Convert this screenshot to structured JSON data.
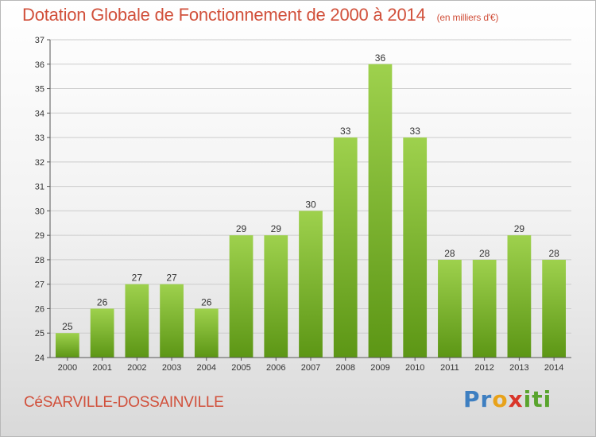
{
  "page": {
    "title": "Dotation Globale de Fonctionnement de 2000 à 2014",
    "subtitle": "(en milliers d'€)",
    "commune": "CéSARVILLE-DOSSAINVILLE",
    "logo": {
      "text": "Proxiti",
      "letters": [
        "P",
        "r",
        "o",
        "x",
        "i",
        "t",
        "i"
      ],
      "colors": [
        "#3e7fc1",
        "#3e7fc1",
        "#e8a21a",
        "#d9352a",
        "#59a42d",
        "#59a42d",
        "#59a42d"
      ]
    }
  },
  "colors": {
    "accent": "#d1503b",
    "bar_top": "#9ed14d",
    "bar_bottom": "#5c9615",
    "grid": "#cccccc"
  },
  "chart_data": {
    "type": "bar",
    "title": "Dotation Globale de Fonctionnement de 2000 à 2014",
    "subtitle": "(en milliers d'€)",
    "xlabel": "",
    "ylabel": "",
    "categories": [
      "2000",
      "2001",
      "2002",
      "2003",
      "2004",
      "2005",
      "2006",
      "2007",
      "2008",
      "2009",
      "2010",
      "2011",
      "2012",
      "2013",
      "2014"
    ],
    "values": [
      25,
      26,
      27,
      27,
      26,
      29,
      29,
      30,
      33,
      36,
      33,
      28,
      28,
      29,
      28
    ],
    "ylim": [
      24,
      37
    ],
    "yticks": [
      24,
      25,
      26,
      27,
      28,
      29,
      30,
      31,
      32,
      33,
      34,
      35,
      36,
      37
    ],
    "grid": true,
    "legend": "none"
  }
}
